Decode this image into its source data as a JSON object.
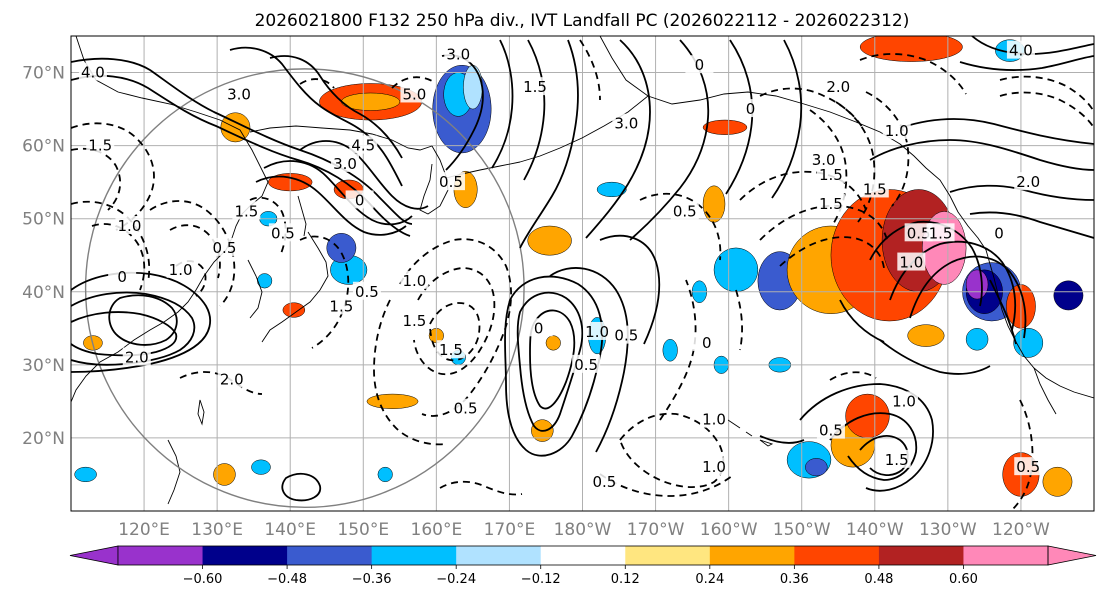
{
  "title": "2026021800 F132 250 hPa div., IVT Landfall PC (2026022112 - 2026022312)",
  "map": {
    "lon_min": 110,
    "lon_max": 250,
    "lat_min": 10,
    "lat_max": 75,
    "lat_ticks": [
      {
        "value": 70,
        "label": "70°N"
      },
      {
        "value": 60,
        "label": "60°N"
      },
      {
        "value": 50,
        "label": "50°N"
      },
      {
        "value": 40,
        "label": "40°N"
      },
      {
        "value": 30,
        "label": "30°N"
      },
      {
        "value": 20,
        "label": "20°N"
      }
    ],
    "lon_ticks": [
      {
        "value": 120,
        "label": "120°E"
      },
      {
        "value": 130,
        "label": "130°E"
      },
      {
        "value": 140,
        "label": "140°E"
      },
      {
        "value": 150,
        "label": "150°E"
      },
      {
        "value": 160,
        "label": "160°E"
      },
      {
        "value": 170,
        "label": "170°E"
      },
      {
        "value": 180,
        "label": "180°W"
      },
      {
        "value": 190,
        "label": "170°W"
      },
      {
        "value": 200,
        "label": "160°W"
      },
      {
        "value": 210,
        "label": "150°W"
      },
      {
        "value": 220,
        "label": "140°W"
      },
      {
        "value": 230,
        "label": "130°W"
      },
      {
        "value": 240,
        "label": "120°W"
      }
    ],
    "frame_color": "#000000",
    "grid_color": "#b0b0b0",
    "tick_label_color": "#808080",
    "circle_color": "#808080",
    "circle": {
      "center_lon": 142,
      "center_lat": 40.5,
      "radius_deg": 30
    }
  },
  "colorbar": {
    "colors": [
      "#9932cc",
      "#00008b",
      "#3a5bcf",
      "#00bfff",
      "#b0e2ff",
      "#ffffff",
      "#ffe680",
      "#ffa500",
      "#ff4500",
      "#b22222",
      "#ff88b8"
    ],
    "extend_min_color": "#9932cc",
    "extend_max_color": "#ff88b8",
    "levels": [
      -0.6,
      -0.48,
      -0.36,
      -0.24,
      -0.12,
      0.12,
      0.24,
      0.36,
      0.48,
      0.6
    ],
    "labels": [
      "−0.60",
      "−0.48",
      "−0.36",
      "−0.24",
      "−0.12",
      "0.12",
      "0.24",
      "0.36",
      "0.48",
      "0.60"
    ]
  },
  "divergence_patches": [
    {
      "lon": 151,
      "lat": 66,
      "rlon": 7,
      "rlat": 2.5,
      "value": 0.4
    },
    {
      "lon": 151,
      "lat": 66,
      "rlon": 4,
      "rlat": 1.2,
      "value": 0.3
    },
    {
      "lon": 163.5,
      "lat": 65,
      "rlon": 4,
      "rlat": 6,
      "value": -0.4
    },
    {
      "lon": 163,
      "lat": 67,
      "rlon": 2,
      "rlat": 3,
      "value": -0.3
    },
    {
      "lon": 165,
      "lat": 68,
      "rlon": 1.3,
      "rlat": 3,
      "value": -0.2
    },
    {
      "lon": 132.5,
      "lat": 62.5,
      "rlon": 2,
      "rlat": 2,
      "value": 0.3
    },
    {
      "lon": 140,
      "lat": 55,
      "rlon": 3,
      "rlat": 1.2,
      "value": 0.4
    },
    {
      "lon": 148,
      "lat": 54,
      "rlon": 2,
      "rlat": 1.3,
      "value": 0.4
    },
    {
      "lon": 137,
      "lat": 50,
      "rlon": 1.2,
      "rlat": 1,
      "value": -0.25
    },
    {
      "lon": 148,
      "lat": 43,
      "rlon": 2.5,
      "rlat": 2,
      "value": -0.3
    },
    {
      "lon": 147,
      "lat": 46,
      "rlon": 2,
      "rlat": 2,
      "value": -0.4
    },
    {
      "lon": 164,
      "lat": 54,
      "rlon": 1.6,
      "rlat": 2.5,
      "value": 0.3
    },
    {
      "lon": 175.5,
      "lat": 47,
      "rlon": 3,
      "rlat": 2,
      "value": 0.3
    },
    {
      "lon": 199.5,
      "lat": 62.5,
      "rlon": 3,
      "rlat": 1,
      "value": 0.4
    },
    {
      "lon": 184,
      "lat": 54,
      "rlon": 2,
      "rlat": 1,
      "value": -0.25
    },
    {
      "lon": 198,
      "lat": 52,
      "rlon": 1.5,
      "rlat": 2.5,
      "value": 0.3
    },
    {
      "lon": 201,
      "lat": 43,
      "rlon": 3,
      "rlat": 3,
      "value": -0.3
    },
    {
      "lon": 207,
      "lat": 41.5,
      "rlon": 3,
      "rlat": 4,
      "value": -0.4
    },
    {
      "lon": 196,
      "lat": 40,
      "rlon": 1,
      "rlat": 1.5,
      "value": -0.35
    },
    {
      "lon": 214,
      "lat": 43,
      "rlon": 6,
      "rlat": 6,
      "value": 0.3
    },
    {
      "lon": 222,
      "lat": 45,
      "rlon": 8,
      "rlat": 9,
      "value": 0.38
    },
    {
      "lon": 226,
      "lat": 47,
      "rlon": 5,
      "rlat": 7,
      "value": 0.5
    },
    {
      "lon": 229.5,
      "lat": 46,
      "rlon": 3,
      "rlat": 5,
      "value": 0.65
    },
    {
      "lon": 236,
      "lat": 40,
      "rlon": 4,
      "rlat": 4,
      "value": -0.4
    },
    {
      "lon": 235,
      "lat": 40,
      "rlon": 2.5,
      "rlat": 3,
      "value": -0.55
    },
    {
      "lon": 234,
      "lat": 41,
      "rlon": 1.5,
      "rlat": 2,
      "value": -0.65
    },
    {
      "lon": 240,
      "lat": 38,
      "rlon": 2,
      "rlat": 3,
      "value": 0.4
    },
    {
      "lon": 241,
      "lat": 33,
      "rlon": 2,
      "rlat": 2,
      "value": -0.3
    },
    {
      "lon": 246.5,
      "lat": 39.5,
      "rlon": 2,
      "rlat": 2,
      "value": -0.5
    },
    {
      "lon": 227,
      "lat": 34,
      "rlon": 2.5,
      "rlat": 1.5,
      "value": 0.3
    },
    {
      "lon": 234,
      "lat": 33.5,
      "rlon": 1.5,
      "rlat": 1.5,
      "value": -0.3
    },
    {
      "lon": 238.5,
      "lat": 73,
      "rlon": 2,
      "rlat": 1.5,
      "value": -0.25
    },
    {
      "lon": 225,
      "lat": 73.5,
      "rlon": 7,
      "rlat": 2,
      "value": 0.38
    },
    {
      "lon": 182,
      "lat": 34,
      "rlon": 1.2,
      "rlat": 2.5,
      "value": -0.3
    },
    {
      "lon": 176,
      "lat": 33,
      "rlon": 1,
      "rlat": 1,
      "value": 0.3
    },
    {
      "lon": 160,
      "lat": 34,
      "rlon": 1,
      "rlat": 1,
      "value": 0.3
    },
    {
      "lon": 163,
      "lat": 31,
      "rlon": 1,
      "rlat": 1,
      "value": -0.25
    },
    {
      "lon": 154,
      "lat": 25,
      "rlon": 3.5,
      "rlat": 1,
      "value": 0.3
    },
    {
      "lon": 174.5,
      "lat": 21,
      "rlon": 1.5,
      "rlat": 1.5,
      "value": 0.3
    },
    {
      "lon": 211,
      "lat": 17,
      "rlon": 3,
      "rlat": 2.5,
      "value": -0.3
    },
    {
      "lon": 212,
      "lat": 16,
      "rlon": 1.5,
      "rlat": 1.2,
      "value": -0.45
    },
    {
      "lon": 217,
      "lat": 19,
      "rlon": 3,
      "rlat": 3,
      "value": 0.3
    },
    {
      "lon": 219,
      "lat": 23,
      "rlon": 3,
      "rlat": 3,
      "value": 0.42
    },
    {
      "lon": 240,
      "lat": 15,
      "rlon": 2.5,
      "rlat": 3,
      "value": 0.4
    },
    {
      "lon": 245,
      "lat": 14,
      "rlon": 2,
      "rlat": 2,
      "value": 0.3
    },
    {
      "lon": 112,
      "lat": 15,
      "rlon": 1.5,
      "rlat": 1,
      "value": -0.3
    },
    {
      "lon": 131,
      "lat": 15,
      "rlon": 1.5,
      "rlat": 1.5,
      "value": 0.3
    },
    {
      "lon": 140.5,
      "lat": 37.5,
      "rlon": 1.5,
      "rlat": 1,
      "value": 0.4
    },
    {
      "lon": 113,
      "lat": 33,
      "rlon": 1.3,
      "rlat": 1,
      "value": 0.3
    },
    {
      "lon": 136,
      "lat": 16,
      "rlon": 1.3,
      "rlat": 1,
      "value": -0.3
    },
    {
      "lon": 153,
      "lat": 15,
      "rlon": 1,
      "rlat": 1,
      "value": -0.25
    },
    {
      "lon": 136.5,
      "lat": 41.5,
      "rlon": 1,
      "rlat": 1,
      "value": -0.25
    },
    {
      "lon": 207,
      "lat": 30,
      "rlon": 1.5,
      "rlat": 1,
      "value": -0.3
    },
    {
      "lon": 199,
      "lat": 30,
      "rlon": 1,
      "rlat": 1.2,
      "value": -0.3
    },
    {
      "lon": 192,
      "lat": 32,
      "rlon": 1,
      "rlat": 1.5,
      "value": -0.3
    }
  ],
  "contour_labels": [
    {
      "lon": 113,
      "lat": 70,
      "text": "4.0"
    },
    {
      "lon": 133,
      "lat": 67,
      "text": "3.0"
    },
    {
      "lon": 163,
      "lat": 72.5,
      "text": "3.0"
    },
    {
      "lon": 157,
      "lat": 67,
      "text": "5.0"
    },
    {
      "lon": 173.5,
      "lat": 68,
      "text": "1.5"
    },
    {
      "lon": 186,
      "lat": 63,
      "text": "3.0"
    },
    {
      "lon": 203,
      "lat": 65,
      "text": "0"
    },
    {
      "lon": 196,
      "lat": 71,
      "text": "0"
    },
    {
      "lon": 215,
      "lat": 68,
      "text": "2.0"
    },
    {
      "lon": 240,
      "lat": 73,
      "text": "4.0"
    },
    {
      "lon": 223,
      "lat": 62,
      "text": "1.0"
    },
    {
      "lon": 241,
      "lat": 55,
      "text": "2.0"
    },
    {
      "lon": 213,
      "lat": 58,
      "text": "3.0"
    },
    {
      "lon": 220,
      "lat": 54,
      "text": "1.5"
    },
    {
      "lon": 226,
      "lat": 48,
      "text": "0.5"
    },
    {
      "lon": 225,
      "lat": 44,
      "text": "1.0"
    },
    {
      "lon": 229,
      "lat": 48,
      "text": "1.5"
    },
    {
      "lon": 237,
      "lat": 48,
      "text": "0"
    },
    {
      "lon": 114,
      "lat": 60,
      "text": "1.5"
    },
    {
      "lon": 147.5,
      "lat": 57.5,
      "text": "3.0"
    },
    {
      "lon": 149.5,
      "lat": 52.5,
      "text": "0"
    },
    {
      "lon": 150,
      "lat": 60,
      "text": "4.5"
    },
    {
      "lon": 162,
      "lat": 55,
      "text": "0.5"
    },
    {
      "lon": 118,
      "lat": 49,
      "text": "1.0"
    },
    {
      "lon": 131,
      "lat": 46,
      "text": "0.5"
    },
    {
      "lon": 134,
      "lat": 51,
      "text": "1.5"
    },
    {
      "lon": 139,
      "lat": 48,
      "text": "0.5"
    },
    {
      "lon": 125,
      "lat": 43,
      "text": "1.0"
    },
    {
      "lon": 117,
      "lat": 42,
      "text": "0"
    },
    {
      "lon": 150.5,
      "lat": 40,
      "text": "0.5"
    },
    {
      "lon": 157,
      "lat": 41.5,
      "text": "1.0"
    },
    {
      "lon": 157,
      "lat": 36,
      "text": "1.5"
    },
    {
      "lon": 147,
      "lat": 38,
      "text": "1.5"
    },
    {
      "lon": 162,
      "lat": 32,
      "text": "1.5"
    },
    {
      "lon": 132,
      "lat": 28,
      "text": "2.0"
    },
    {
      "lon": 119,
      "lat": 31,
      "text": "2.0"
    },
    {
      "lon": 164,
      "lat": 24,
      "text": "0.5"
    },
    {
      "lon": 174,
      "lat": 35,
      "text": "0"
    },
    {
      "lon": 180.5,
      "lat": 30,
      "text": "0.5"
    },
    {
      "lon": 182,
      "lat": 34.5,
      "text": "1.0"
    },
    {
      "lon": 186,
      "lat": 34,
      "text": "0.5"
    },
    {
      "lon": 197,
      "lat": 33,
      "text": "0"
    },
    {
      "lon": 198,
      "lat": 22.5,
      "text": "1.0"
    },
    {
      "lon": 198,
      "lat": 16,
      "text": "1.0"
    },
    {
      "lon": 183,
      "lat": 14,
      "text": "0.5"
    },
    {
      "lon": 194,
      "lat": 51,
      "text": "0.5"
    },
    {
      "lon": 214,
      "lat": 21,
      "text": "0.5"
    },
    {
      "lon": 224,
      "lat": 25,
      "text": "1.0"
    },
    {
      "lon": 223,
      "lat": 17,
      "text": "1.5"
    },
    {
      "lon": 241,
      "lat": 16,
      "text": "0.5"
    },
    {
      "lon": 214,
      "lat": 56,
      "text": "1.5"
    },
    {
      "lon": 214,
      "lat": 52,
      "text": "1.5"
    }
  ]
}
